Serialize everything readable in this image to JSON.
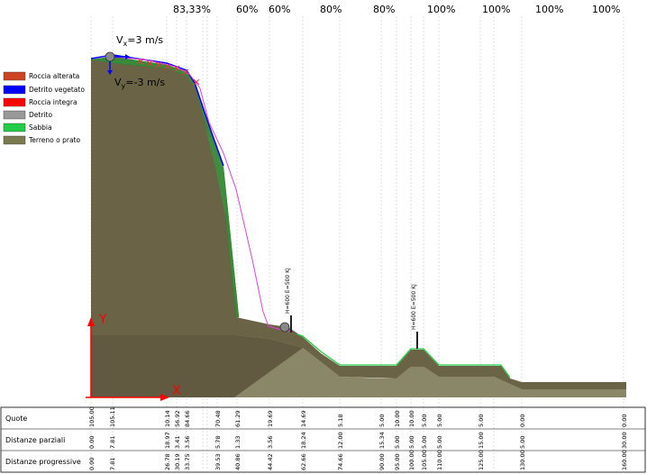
{
  "percentages": [
    "83,33%",
    "60%",
    "60%",
    "80%",
    "80%",
    "100%",
    "100%",
    "100%",
    "100%"
  ],
  "legend": [
    {
      "label": "Roccia alterata",
      "color": "#cc4422"
    },
    {
      "label": "Detrito vegetato",
      "color": "#0000ff"
    },
    {
      "label": "Roccia integra",
      "color": "#ff0000"
    },
    {
      "label": "Detrito",
      "color": "#999999"
    },
    {
      "label": "Sabbia",
      "color": "#22cc44"
    },
    {
      "label": "Terreno o prato",
      "color": "#7a7a50"
    }
  ],
  "velocity": {
    "vx_prefix": "V",
    "vx_sub": "x",
    "vx_value": "=3 m/s",
    "vy_prefix": "V",
    "vy_sub": "y",
    "vy_value": "=-3 m/s"
  },
  "axes": {
    "x": "X",
    "y": "Y"
  },
  "barriers": [
    {
      "label": "H=600 E=500 KJ"
    },
    {
      "label": "H=600 E=500 KJ"
    }
  ],
  "table": {
    "rows": [
      "Quote",
      "Distanze parziali",
      "Distanze progressive"
    ],
    "quote": [
      "105.00",
      "105.11",
      "10.14",
      "56.92",
      "84.66",
      "70.48",
      "61.29",
      "19.69",
      "14.69",
      "5.18",
      "5.00",
      "10.00",
      "10.00",
      "5.00",
      "5.00",
      "5.00",
      "0.00",
      "0.00"
    ],
    "parziali": [
      "0.00",
      "7.81",
      "18.97",
      "3.41",
      "3.56",
      "5.78",
      "1.33",
      "3.56",
      "18.24",
      "12.00",
      "15.34",
      "5.00",
      "5.00",
      "5.00",
      "5.00",
      "15.00",
      "5.00",
      "30.00"
    ],
    "progressive": [
      "0.00",
      "7.81",
      "26.78",
      "30.19",
      "33.75",
      "39.53",
      "40.86",
      "44.42",
      "62.66",
      "74.66",
      "90.00",
      "95.00",
      "100.00",
      "105.00",
      "110.00",
      "125.00",
      "130.00",
      "160.00"
    ]
  },
  "colors": {
    "terrain": "#6b6346",
    "surface_green": "#3a8a3a",
    "debris_blue": "#0000ff",
    "trajectory": "#e040e0",
    "marker": "#ee3333",
    "axis": "#ff0000",
    "lower_ground": "#8a8668"
  }
}
